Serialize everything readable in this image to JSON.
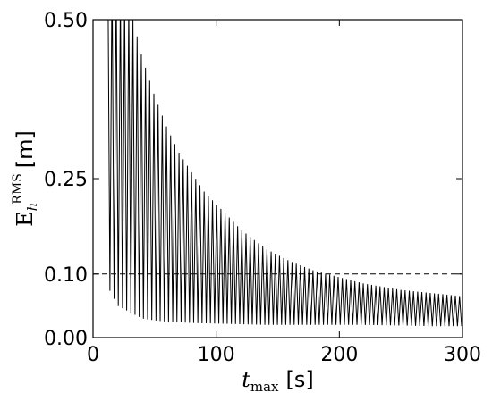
{
  "chart_data": {
    "type": "line",
    "xlabel": {
      "symbol": "t",
      "subscript": "max",
      "unit": "[s]"
    },
    "ylabel": {
      "symbol": "E",
      "subscript": "h",
      "superscript": "RMS",
      "unit": "[m]"
    },
    "xlim": [
      0,
      300
    ],
    "ylim": [
      0,
      0.5
    ],
    "xticks": [
      0,
      100,
      200,
      300
    ],
    "xtick_labels": [
      "0",
      "100",
      "200",
      "300"
    ],
    "yticks": [
      0,
      0.1,
      0.25,
      0.5
    ],
    "ytick_labels": [
      "0.00",
      "0.10",
      "0.25",
      "0.50"
    ],
    "grid": false,
    "reference_line": {
      "y": 0.1,
      "style": "dashed"
    },
    "series": [
      {
        "line_color": "#000000",
        "x_start": 12,
        "x_end": 300,
        "period": 3.4,
        "upper_envelope": {
          "x": [
            12,
            20,
            30,
            40,
            50,
            60,
            70,
            80,
            90,
            100,
            120,
            140,
            160,
            180,
            200,
            220,
            250,
            275,
            300
          ],
          "y": [
            0.6,
            0.55,
            0.52,
            0.44,
            0.38,
            0.33,
            0.29,
            0.26,
            0.23,
            0.21,
            0.17,
            0.14,
            0.12,
            0.105,
            0.095,
            0.085,
            0.075,
            0.07,
            0.065
          ]
        },
        "lower_envelope": {
          "x": [
            12,
            20,
            30,
            40,
            50,
            60,
            80,
            100,
            120,
            140,
            160,
            180,
            200,
            220,
            250,
            275,
            300
          ],
          "y": [
            0.08,
            0.05,
            0.04,
            0.03,
            0.027,
            0.025,
            0.023,
            0.022,
            0.021,
            0.02,
            0.02,
            0.02,
            0.02,
            0.02,
            0.019,
            0.018,
            0.018
          ]
        }
      }
    ]
  }
}
